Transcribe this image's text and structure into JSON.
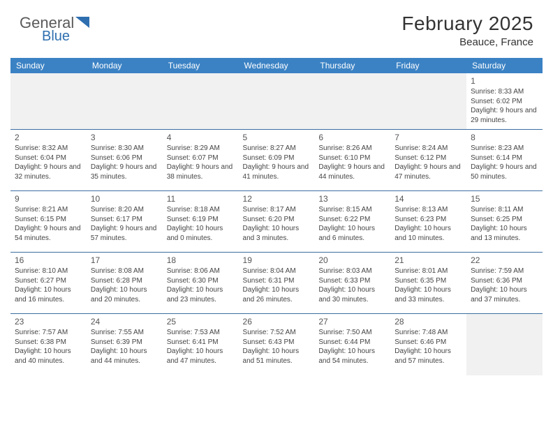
{
  "logo": {
    "text_dark": "General",
    "text_accent": "Blue"
  },
  "header": {
    "title": "February 2025",
    "location": "Beauce, France"
  },
  "colors": {
    "header_bg": "#3b82c4",
    "header_text": "#ffffff",
    "divider": "#3b6ea0",
    "logo_dark": "#5a5a5a",
    "logo_accent": "#2f6fb0",
    "body_text": "#444444",
    "empty_bg": "#f1f1f1",
    "page_bg": "#ffffff"
  },
  "typography": {
    "title_fontsize": 28,
    "location_fontsize": 15,
    "day_header_fontsize": 12,
    "daynum_fontsize": 12,
    "body_fontsize": 10
  },
  "calendar": {
    "type": "table",
    "columns": [
      "Sunday",
      "Monday",
      "Tuesday",
      "Wednesday",
      "Thursday",
      "Friday",
      "Saturday"
    ],
    "first_weekday_index": 6,
    "days": [
      {
        "n": 1,
        "sunrise": "8:33 AM",
        "sunset": "6:02 PM",
        "daylight": "9 hours and 29 minutes."
      },
      {
        "n": 2,
        "sunrise": "8:32 AM",
        "sunset": "6:04 PM",
        "daylight": "9 hours and 32 minutes."
      },
      {
        "n": 3,
        "sunrise": "8:30 AM",
        "sunset": "6:06 PM",
        "daylight": "9 hours and 35 minutes."
      },
      {
        "n": 4,
        "sunrise": "8:29 AM",
        "sunset": "6:07 PM",
        "daylight": "9 hours and 38 minutes."
      },
      {
        "n": 5,
        "sunrise": "8:27 AM",
        "sunset": "6:09 PM",
        "daylight": "9 hours and 41 minutes."
      },
      {
        "n": 6,
        "sunrise": "8:26 AM",
        "sunset": "6:10 PM",
        "daylight": "9 hours and 44 minutes."
      },
      {
        "n": 7,
        "sunrise": "8:24 AM",
        "sunset": "6:12 PM",
        "daylight": "9 hours and 47 minutes."
      },
      {
        "n": 8,
        "sunrise": "8:23 AM",
        "sunset": "6:14 PM",
        "daylight": "9 hours and 50 minutes."
      },
      {
        "n": 9,
        "sunrise": "8:21 AM",
        "sunset": "6:15 PM",
        "daylight": "9 hours and 54 minutes."
      },
      {
        "n": 10,
        "sunrise": "8:20 AM",
        "sunset": "6:17 PM",
        "daylight": "9 hours and 57 minutes."
      },
      {
        "n": 11,
        "sunrise": "8:18 AM",
        "sunset": "6:19 PM",
        "daylight": "10 hours and 0 minutes."
      },
      {
        "n": 12,
        "sunrise": "8:17 AM",
        "sunset": "6:20 PM",
        "daylight": "10 hours and 3 minutes."
      },
      {
        "n": 13,
        "sunrise": "8:15 AM",
        "sunset": "6:22 PM",
        "daylight": "10 hours and 6 minutes."
      },
      {
        "n": 14,
        "sunrise": "8:13 AM",
        "sunset": "6:23 PM",
        "daylight": "10 hours and 10 minutes."
      },
      {
        "n": 15,
        "sunrise": "8:11 AM",
        "sunset": "6:25 PM",
        "daylight": "10 hours and 13 minutes."
      },
      {
        "n": 16,
        "sunrise": "8:10 AM",
        "sunset": "6:27 PM",
        "daylight": "10 hours and 16 minutes."
      },
      {
        "n": 17,
        "sunrise": "8:08 AM",
        "sunset": "6:28 PM",
        "daylight": "10 hours and 20 minutes."
      },
      {
        "n": 18,
        "sunrise": "8:06 AM",
        "sunset": "6:30 PM",
        "daylight": "10 hours and 23 minutes."
      },
      {
        "n": 19,
        "sunrise": "8:04 AM",
        "sunset": "6:31 PM",
        "daylight": "10 hours and 26 minutes."
      },
      {
        "n": 20,
        "sunrise": "8:03 AM",
        "sunset": "6:33 PM",
        "daylight": "10 hours and 30 minutes."
      },
      {
        "n": 21,
        "sunrise": "8:01 AM",
        "sunset": "6:35 PM",
        "daylight": "10 hours and 33 minutes."
      },
      {
        "n": 22,
        "sunrise": "7:59 AM",
        "sunset": "6:36 PM",
        "daylight": "10 hours and 37 minutes."
      },
      {
        "n": 23,
        "sunrise": "7:57 AM",
        "sunset": "6:38 PM",
        "daylight": "10 hours and 40 minutes."
      },
      {
        "n": 24,
        "sunrise": "7:55 AM",
        "sunset": "6:39 PM",
        "daylight": "10 hours and 44 minutes."
      },
      {
        "n": 25,
        "sunrise": "7:53 AM",
        "sunset": "6:41 PM",
        "daylight": "10 hours and 47 minutes."
      },
      {
        "n": 26,
        "sunrise": "7:52 AM",
        "sunset": "6:43 PM",
        "daylight": "10 hours and 51 minutes."
      },
      {
        "n": 27,
        "sunrise": "7:50 AM",
        "sunset": "6:44 PM",
        "daylight": "10 hours and 54 minutes."
      },
      {
        "n": 28,
        "sunrise": "7:48 AM",
        "sunset": "6:46 PM",
        "daylight": "10 hours and 57 minutes."
      }
    ],
    "labels": {
      "sunrise": "Sunrise:",
      "sunset": "Sunset:",
      "daylight": "Daylight:"
    }
  }
}
